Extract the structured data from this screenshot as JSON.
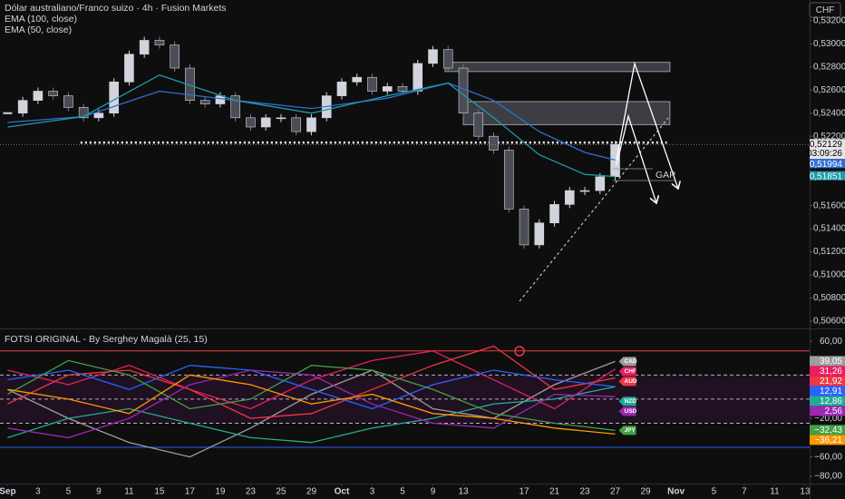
{
  "chart_data": [
    {
      "type": "candlestick",
      "title": "Dólar australiano/Franco suizo · 4h · Fusion Markets",
      "currency_label": "CHF",
      "countdown": "03:09:26",
      "annotation": "GAP",
      "xlim": [
        -0.5,
        52.8
      ],
      "ylim": [
        0.50553,
        0.53379
      ],
      "xticks": [
        {
          "value": 0,
          "label": "Sep"
        },
        {
          "value": 2,
          "label": "3"
        },
        {
          "value": 4,
          "label": "5"
        },
        {
          "value": 6,
          "label": "9"
        },
        {
          "value": 8,
          "label": "11"
        },
        {
          "value": 10,
          "label": "15"
        },
        {
          "value": 12,
          "label": "17"
        },
        {
          "value": 14,
          "label": "19"
        },
        {
          "value": 16,
          "label": "23"
        },
        {
          "value": 18,
          "label": "25"
        },
        {
          "value": 20,
          "label": "29"
        },
        {
          "value": 22,
          "label": "Oct"
        },
        {
          "value": 24,
          "label": "3"
        },
        {
          "value": 26,
          "label": "5"
        },
        {
          "value": 28,
          "label": "9"
        },
        {
          "value": 30,
          "label": "13"
        },
        {
          "value": 34,
          "label": "17"
        },
        {
          "value": 36,
          "label": "21"
        },
        {
          "value": 38,
          "label": "23"
        },
        {
          "value": 40,
          "label": "27"
        },
        {
          "value": 42,
          "label": "29"
        },
        {
          "value": 44,
          "label": "Nov"
        },
        {
          "value": 46.5,
          "label": "5"
        },
        {
          "value": 48.5,
          "label": "7"
        },
        {
          "value": 50.5,
          "label": "11"
        },
        {
          "value": 52.5,
          "label": "13"
        }
      ],
      "yticks": [
        {
          "value": 0.532,
          "label": "0,53200"
        },
        {
          "value": 0.53,
          "label": "0,53000"
        },
        {
          "value": 0.528,
          "label": "0,52800"
        },
        {
          "value": 0.526,
          "label": "0,52600"
        },
        {
          "value": 0.524,
          "label": "0,52400"
        },
        {
          "value": 0.522,
          "label": "0,52200"
        },
        {
          "value": 0.516,
          "label": "0,51600"
        },
        {
          "value": 0.514,
          "label": "0,51400"
        },
        {
          "value": 0.512,
          "label": "0,51200"
        },
        {
          "value": 0.51,
          "label": "0,51000"
        },
        {
          "value": 0.508,
          "label": "0,50800"
        },
        {
          "value": 0.506,
          "label": "0,50600"
        }
      ],
      "series": [
        {
          "style": "candle",
          "color": "#d1d4dc",
          "x": [
            0,
            1,
            2,
            3,
            4,
            5,
            6,
            7,
            8,
            9,
            10,
            11,
            12,
            13,
            14,
            15,
            16,
            17,
            18,
            19,
            20,
            21,
            22,
            23,
            24,
            25,
            26,
            27,
            28,
            29,
            30,
            31,
            32,
            33,
            34,
            35,
            36,
            37,
            38,
            39,
            40
          ],
          "values": [
            0.524,
            0.5251,
            0.5259,
            0.5255,
            0.5245,
            0.5236,
            0.524,
            0.5267,
            0.5291,
            0.5303,
            0.5299,
            0.5279,
            0.5251,
            0.5248,
            0.5255,
            0.5236,
            0.5228,
            0.5236,
            0.5236,
            0.5224,
            0.5236,
            0.5255,
            0.5267,
            0.5271,
            0.5259,
            0.5263,
            0.5259,
            0.5283,
            0.5295,
            0.5279,
            0.524,
            0.522,
            0.5208,
            0.5157,
            0.5126,
            0.5145,
            0.5161,
            0.5173,
            0.5173,
            0.5185,
            0.52129
          ],
          "value_labels": [
            null,
            null,
            null,
            null,
            null,
            null,
            null,
            null,
            null,
            null,
            null,
            null,
            null,
            null,
            null,
            null,
            null,
            null,
            null,
            null,
            null,
            null,
            null,
            null,
            null,
            null,
            null,
            null,
            null,
            null,
            null,
            null,
            null,
            null,
            null,
            null,
            null,
            null,
            null,
            null,
            "0,52129"
          ]
        },
        {
          "style": "line",
          "name": "EMA (100, close)",
          "color": "#2f6fd6",
          "x": [
            0,
            5,
            10,
            15,
            20,
            25,
            29,
            32,
            35,
            38,
            40
          ],
          "values": [
            0.5232,
            0.5237,
            0.5259,
            0.5251,
            0.5244,
            0.5253,
            0.5266,
            0.5251,
            0.5224,
            0.5206,
            0.51994
          ],
          "value_labels": [
            null,
            null,
            null,
            null,
            null,
            null,
            null,
            null,
            null,
            null,
            "0,51994"
          ]
        },
        {
          "style": "line",
          "name": "EMA (50, close)",
          "color": "#1e9aa8",
          "x": [
            0,
            5,
            10,
            15,
            20,
            25,
            29,
            32,
            35,
            38,
            40
          ],
          "values": [
            0.5228,
            0.5237,
            0.5273,
            0.5251,
            0.524,
            0.5255,
            0.5266,
            0.5236,
            0.5204,
            0.5187,
            0.51851
          ],
          "value_labels": [
            null,
            null,
            null,
            null,
            null,
            null,
            null,
            null,
            null,
            null,
            "0,51851"
          ]
        }
      ],
      "zones": [
        {
          "x": [
            28.8,
            43.6
          ],
          "y": [
            0.5276,
            0.5284
          ]
        },
        {
          "x": [
            30,
            43.6
          ],
          "y": [
            0.523,
            0.525
          ]
        }
      ],
      "support": {
        "x": [
          4.8,
          43.4
        ],
        "y": 0.52146
      }
    },
    {
      "type": "line",
      "title": "FOTSI ORIGINAL - By Serghey Magalà (25, 15)",
      "xlim": [
        -0.5,
        52.8
      ],
      "ylim": [
        -86.7,
        70.5
      ],
      "yticks": [
        {
          "value": 60,
          "label": "60,00"
        },
        {
          "value": -20,
          "label": "−20,00"
        },
        {
          "value": -60,
          "label": "−60,00"
        },
        {
          "value": -80,
          "label": "−80,00"
        }
      ],
      "levels": [
        {
          "value": 50,
          "color": "#f23645",
          "style": "solid"
        },
        {
          "value": 25,
          "color": "#bbbbbb",
          "style": "dashed"
        },
        {
          "value": 0,
          "color": "#bbbbbb",
          "style": "dashed"
        },
        {
          "value": -25,
          "color": "#bbbbbb",
          "style": "dashed"
        },
        {
          "value": -50,
          "color": "#2962ff",
          "style": "solid"
        }
      ],
      "series": [
        {
          "name": "CAD",
          "color": "#9e9e9e",
          "x": [
            0,
            4,
            8,
            12,
            16,
            20,
            24,
            28,
            32,
            36,
            40
          ],
          "values": [
            10,
            -20,
            -45,
            -60,
            -30,
            5,
            30,
            -10,
            -20,
            15,
            39.05
          ],
          "value_labels": [
            null,
            null,
            null,
            null,
            null,
            null,
            null,
            null,
            null,
            null,
            "39,05"
          ]
        },
        {
          "name": "CHF",
          "color": "#e91e63",
          "x": [
            0,
            4,
            8,
            12,
            16,
            20,
            24,
            28,
            32,
            36,
            40
          ],
          "values": [
            30,
            15,
            35,
            10,
            -10,
            20,
            40,
            50,
            20,
            -10,
            31.26
          ],
          "value_labels": [
            null,
            null,
            null,
            null,
            null,
            null,
            null,
            null,
            null,
            null,
            "31,26"
          ]
        },
        {
          "name": "AUD",
          "color": "#f23645",
          "x": [
            0,
            4,
            8,
            12,
            16,
            20,
            24,
            28,
            32,
            36,
            40
          ],
          "values": [
            -5,
            25,
            30,
            10,
            -20,
            -15,
            10,
            35,
            55,
            10,
            21.92
          ],
          "value_labels": [
            null,
            null,
            null,
            null,
            null,
            null,
            null,
            null,
            null,
            null,
            "21,92"
          ]
        },
        {
          "color": "#2962ff",
          "x": [
            0,
            4,
            8,
            12,
            16,
            20,
            24,
            28,
            32,
            36,
            40
          ],
          "values": [
            20,
            30,
            10,
            35,
            30,
            10,
            -10,
            15,
            30,
            20,
            12.91
          ],
          "value_labels": [
            null,
            null,
            null,
            null,
            null,
            null,
            null,
            null,
            null,
            null,
            "12,91"
          ]
        },
        {
          "name": "NZD",
          "color": "#22ab94",
          "x": [
            0,
            4,
            8,
            12,
            16,
            20,
            24,
            28,
            32,
            36,
            40
          ],
          "values": [
            -40,
            -20,
            -10,
            -25,
            -40,
            -45,
            -30,
            -20,
            -5,
            0,
            12.86
          ],
          "value_labels": [
            null,
            null,
            null,
            null,
            null,
            null,
            null,
            null,
            null,
            null,
            "12,86"
          ]
        },
        {
          "name": "USD",
          "color": "#9c27b0",
          "x": [
            0,
            4,
            8,
            12,
            16,
            20,
            24,
            28,
            32,
            36,
            40
          ],
          "values": [
            -30,
            -40,
            -20,
            15,
            30,
            25,
            -5,
            -25,
            -30,
            5,
            2.56
          ],
          "value_labels": [
            null,
            null,
            null,
            null,
            null,
            null,
            null,
            null,
            null,
            null,
            "2,56"
          ]
        },
        {
          "name": "JPY",
          "color": "#43a047",
          "x": [
            0,
            4,
            8,
            12,
            16,
            20,
            24,
            28,
            32,
            36,
            40
          ],
          "values": [
            5,
            40,
            25,
            -10,
            0,
            35,
            30,
            10,
            -15,
            -25,
            -32.43
          ],
          "value_labels": [
            null,
            null,
            null,
            null,
            null,
            null,
            null,
            null,
            null,
            null,
            "−32,43"
          ]
        },
        {
          "color": "#ff9800",
          "x": [
            0,
            4,
            8,
            12,
            16,
            20,
            24,
            28,
            32,
            36,
            40
          ],
          "values": [
            10,
            0,
            -15,
            25,
            15,
            -5,
            5,
            -15,
            -20,
            -30,
            -36.21
          ],
          "value_labels": [
            null,
            null,
            null,
            null,
            null,
            null,
            null,
            null,
            null,
            null,
            "−36,21"
          ]
        }
      ]
    }
  ]
}
